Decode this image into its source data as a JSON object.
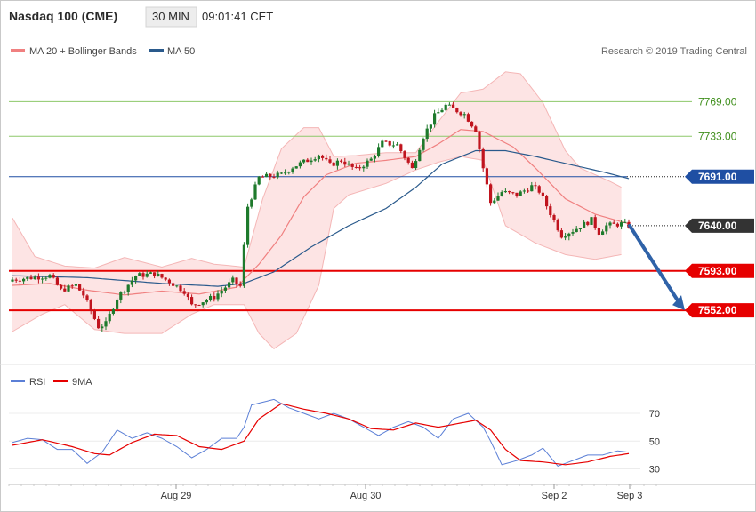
{
  "header": {
    "instrument": "Nasdaq 100 (CME)",
    "timeframe": "30 MIN",
    "time": "09:01:41 CET"
  },
  "legend": {
    "main": [
      {
        "label": "MA 20 + Bollinger Bands",
        "color": "#f08080"
      },
      {
        "label": "MA 50",
        "color": "#2a5a8c"
      }
    ],
    "indicator": [
      {
        "label": "RSI",
        "color": "#5b7fd6"
      },
      {
        "label": "9MA",
        "color": "#e60000"
      }
    ]
  },
  "credit": "Research © 2019 Trading Central",
  "colors": {
    "candle_up": "#1e7a2c",
    "candle_down": "#c0141e",
    "target_line": "#e60000",
    "pivot_line": "#1f4fa3",
    "resistance_line": "#8dc86a",
    "bb_fill": "#fde4e4",
    "bb_line": "#f4b6b6",
    "ma20": "#f08080",
    "ma50": "#2a5a8c",
    "rsi": "#5b7fd6",
    "rsi_ma": "#e60000",
    "arrow": "#2f62a8",
    "last_price_tag": "#333333"
  },
  "chart_data": [
    {
      "type": "candlestick",
      "title": "Nasdaq 100 (CME)",
      "ylim": [
        7505,
        7810
      ],
      "x_labels": [
        "Aug 29",
        "Aug 30",
        "Sep 2",
        "Sep 3"
      ],
      "levels": [
        {
          "value": 7769,
          "label": "7769.00",
          "kind": "resistance"
        },
        {
          "value": 7733,
          "label": "7733.00",
          "kind": "resistance"
        },
        {
          "value": 7691,
          "label": "7691.00",
          "kind": "pivot"
        },
        {
          "value": 7640,
          "label": "7640.00",
          "kind": "last"
        },
        {
          "value": 7593,
          "label": "7593.00",
          "kind": "target"
        },
        {
          "value": 7552,
          "label": "7552.00",
          "kind": "target"
        }
      ],
      "projection": {
        "from": 7640,
        "to": 7552
      },
      "price_path": [
        {
          "i": 0,
          "p": 7584
        },
        {
          "i": 10,
          "p": 7588
        },
        {
          "i": 13,
          "p": 7573
        },
        {
          "i": 17,
          "p": 7578
        },
        {
          "i": 19,
          "p": 7568
        },
        {
          "i": 23,
          "p": 7535
        },
        {
          "i": 25,
          "p": 7538
        },
        {
          "i": 28,
          "p": 7565
        },
        {
          "i": 33,
          "p": 7588
        },
        {
          "i": 38,
          "p": 7590
        },
        {
          "i": 42,
          "p": 7582
        },
        {
          "i": 46,
          "p": 7572
        },
        {
          "i": 48,
          "p": 7557
        },
        {
          "i": 54,
          "p": 7566
        },
        {
          "i": 59,
          "p": 7583
        },
        {
          "i": 61,
          "p": 7577
        },
        {
          "i": 63,
          "p": 7660
        },
        {
          "i": 66,
          "p": 7690
        },
        {
          "i": 72,
          "p": 7693
        },
        {
          "i": 75,
          "p": 7701
        },
        {
          "i": 79,
          "p": 7708
        },
        {
          "i": 82,
          "p": 7714
        },
        {
          "i": 85,
          "p": 7703
        },
        {
          "i": 88,
          "p": 7708
        },
        {
          "i": 92,
          "p": 7698
        },
        {
          "i": 96,
          "p": 7709
        },
        {
          "i": 99,
          "p": 7726
        },
        {
          "i": 103,
          "p": 7724
        },
        {
          "i": 107,
          "p": 7699
        },
        {
          "i": 110,
          "p": 7733
        },
        {
          "i": 113,
          "p": 7754
        },
        {
          "i": 116,
          "p": 7765
        },
        {
          "i": 121,
          "p": 7756
        },
        {
          "i": 124,
          "p": 7740
        },
        {
          "i": 126,
          "p": 7700
        },
        {
          "i": 128,
          "p": 7664
        },
        {
          "i": 131,
          "p": 7675
        },
        {
          "i": 135,
          "p": 7672
        },
        {
          "i": 139,
          "p": 7681
        },
        {
          "i": 141,
          "p": 7676
        },
        {
          "i": 147,
          "p": 7630
        },
        {
          "i": 150,
          "p": 7635
        },
        {
          "i": 155,
          "p": 7646
        },
        {
          "i": 157,
          "p": 7633
        },
        {
          "i": 159,
          "p": 7640
        },
        {
          "i": 163,
          "p": 7642
        },
        {
          "i": 165,
          "p": 7640
        }
      ],
      "ma20": [
        {
          "i": 0,
          "p": 7578
        },
        {
          "i": 10,
          "p": 7580
        },
        {
          "i": 20,
          "p": 7573
        },
        {
          "i": 30,
          "p": 7568
        },
        {
          "i": 40,
          "p": 7572
        },
        {
          "i": 50,
          "p": 7569
        },
        {
          "i": 60,
          "p": 7576
        },
        {
          "i": 66,
          "p": 7600
        },
        {
          "i": 72,
          "p": 7630
        },
        {
          "i": 78,
          "p": 7670
        },
        {
          "i": 84,
          "p": 7693
        },
        {
          "i": 92,
          "p": 7705
        },
        {
          "i": 100,
          "p": 7708
        },
        {
          "i": 108,
          "p": 7712
        },
        {
          "i": 114,
          "p": 7725
        },
        {
          "i": 120,
          "p": 7740
        },
        {
          "i": 126,
          "p": 7738
        },
        {
          "i": 134,
          "p": 7722
        },
        {
          "i": 140,
          "p": 7700
        },
        {
          "i": 148,
          "p": 7668
        },
        {
          "i": 156,
          "p": 7652
        },
        {
          "i": 165,
          "p": 7642
        }
      ],
      "ma50": [
        {
          "i": 0,
          "p": 7588
        },
        {
          "i": 20,
          "p": 7586
        },
        {
          "i": 40,
          "p": 7580
        },
        {
          "i": 55,
          "p": 7577
        },
        {
          "i": 62,
          "p": 7580
        },
        {
          "i": 70,
          "p": 7592
        },
        {
          "i": 80,
          "p": 7618
        },
        {
          "i": 90,
          "p": 7640
        },
        {
          "i": 100,
          "p": 7658
        },
        {
          "i": 108,
          "p": 7680
        },
        {
          "i": 115,
          "p": 7704
        },
        {
          "i": 124,
          "p": 7718
        },
        {
          "i": 132,
          "p": 7718
        },
        {
          "i": 140,
          "p": 7712
        },
        {
          "i": 150,
          "p": 7703
        },
        {
          "i": 158,
          "p": 7696
        },
        {
          "i": 165,
          "p": 7689
        }
      ],
      "bb_upper": [
        {
          "i": 0,
          "p": 7648
        },
        {
          "i": 6,
          "p": 7608
        },
        {
          "i": 14,
          "p": 7598
        },
        {
          "i": 22,
          "p": 7596
        },
        {
          "i": 30,
          "p": 7607
        },
        {
          "i": 40,
          "p": 7597
        },
        {
          "i": 48,
          "p": 7606
        },
        {
          "i": 54,
          "p": 7600
        },
        {
          "i": 62,
          "p": 7597
        },
        {
          "i": 67,
          "p": 7668
        },
        {
          "i": 72,
          "p": 7720
        },
        {
          "i": 78,
          "p": 7742
        },
        {
          "i": 82,
          "p": 7742
        },
        {
          "i": 86,
          "p": 7712
        },
        {
          "i": 92,
          "p": 7713
        },
        {
          "i": 100,
          "p": 7716
        },
        {
          "i": 108,
          "p": 7716
        },
        {
          "i": 114,
          "p": 7748
        },
        {
          "i": 120,
          "p": 7778
        },
        {
          "i": 126,
          "p": 7782
        },
        {
          "i": 132,
          "p": 7800
        },
        {
          "i": 136,
          "p": 7798
        },
        {
          "i": 142,
          "p": 7768
        },
        {
          "i": 148,
          "p": 7718
        },
        {
          "i": 152,
          "p": 7700
        },
        {
          "i": 160,
          "p": 7686
        },
        {
          "i": 163,
          "p": 7680
        }
      ],
      "bb_lower": [
        {
          "i": 0,
          "p": 7530
        },
        {
          "i": 8,
          "p": 7548
        },
        {
          "i": 14,
          "p": 7558
        },
        {
          "i": 22,
          "p": 7532
        },
        {
          "i": 30,
          "p": 7528
        },
        {
          "i": 40,
          "p": 7528
        },
        {
          "i": 48,
          "p": 7548
        },
        {
          "i": 54,
          "p": 7558
        },
        {
          "i": 62,
          "p": 7558
        },
        {
          "i": 66,
          "p": 7528
        },
        {
          "i": 70,
          "p": 7512
        },
        {
          "i": 76,
          "p": 7528
        },
        {
          "i": 82,
          "p": 7578
        },
        {
          "i": 86,
          "p": 7658
        },
        {
          "i": 90,
          "p": 7672
        },
        {
          "i": 100,
          "p": 7684
        },
        {
          "i": 108,
          "p": 7698
        },
        {
          "i": 114,
          "p": 7706
        },
        {
          "i": 120,
          "p": 7712
        },
        {
          "i": 126,
          "p": 7708
        },
        {
          "i": 132,
          "p": 7640
        },
        {
          "i": 140,
          "p": 7622
        },
        {
          "i": 148,
          "p": 7610
        },
        {
          "i": 156,
          "p": 7605
        },
        {
          "i": 163,
          "p": 7610
        }
      ],
      "price_noise_seed": 7
    },
    {
      "type": "line",
      "title": "RSI",
      "ylim": [
        22,
        86
      ],
      "yticks": [
        30,
        50,
        70
      ],
      "rsi": [
        {
          "i": 0,
          "p": 49
        },
        {
          "i": 4,
          "p": 52
        },
        {
          "i": 8,
          "p": 51
        },
        {
          "i": 12,
          "p": 44
        },
        {
          "i": 16,
          "p": 44
        },
        {
          "i": 20,
          "p": 34
        },
        {
          "i": 24,
          "p": 42
        },
        {
          "i": 28,
          "p": 58
        },
        {
          "i": 32,
          "p": 52
        },
        {
          "i": 36,
          "p": 56
        },
        {
          "i": 40,
          "p": 52
        },
        {
          "i": 44,
          "p": 46
        },
        {
          "i": 48,
          "p": 38
        },
        {
          "i": 52,
          "p": 44
        },
        {
          "i": 56,
          "p": 52
        },
        {
          "i": 60,
          "p": 52
        },
        {
          "i": 62,
          "p": 60
        },
        {
          "i": 64,
          "p": 76
        },
        {
          "i": 70,
          "p": 80
        },
        {
          "i": 74,
          "p": 74
        },
        {
          "i": 78,
          "p": 70
        },
        {
          "i": 82,
          "p": 66
        },
        {
          "i": 86,
          "p": 70
        },
        {
          "i": 90,
          "p": 66
        },
        {
          "i": 94,
          "p": 60
        },
        {
          "i": 98,
          "p": 54
        },
        {
          "i": 102,
          "p": 60
        },
        {
          "i": 106,
          "p": 64
        },
        {
          "i": 110,
          "p": 60
        },
        {
          "i": 114,
          "p": 52
        },
        {
          "i": 118,
          "p": 66
        },
        {
          "i": 122,
          "p": 70
        },
        {
          "i": 126,
          "p": 60
        },
        {
          "i": 128,
          "p": 50
        },
        {
          "i": 131,
          "p": 33
        },
        {
          "i": 135,
          "p": 36
        },
        {
          "i": 139,
          "p": 40
        },
        {
          "i": 142,
          "p": 45
        },
        {
          "i": 146,
          "p": 32
        },
        {
          "i": 150,
          "p": 36
        },
        {
          "i": 154,
          "p": 40
        },
        {
          "i": 158,
          "p": 40
        },
        {
          "i": 162,
          "p": 43
        },
        {
          "i": 165,
          "p": 42
        }
      ],
      "rsi_ma": [
        {
          "i": 0,
          "p": 47
        },
        {
          "i": 8,
          "p": 51
        },
        {
          "i": 16,
          "p": 46
        },
        {
          "i": 22,
          "p": 41
        },
        {
          "i": 26,
          "p": 40
        },
        {
          "i": 32,
          "p": 49
        },
        {
          "i": 38,
          "p": 55
        },
        {
          "i": 44,
          "p": 54
        },
        {
          "i": 50,
          "p": 46
        },
        {
          "i": 56,
          "p": 44
        },
        {
          "i": 62,
          "p": 50
        },
        {
          "i": 66,
          "p": 66
        },
        {
          "i": 72,
          "p": 77
        },
        {
          "i": 78,
          "p": 73
        },
        {
          "i": 84,
          "p": 70
        },
        {
          "i": 90,
          "p": 66
        },
        {
          "i": 96,
          "p": 59
        },
        {
          "i": 102,
          "p": 58
        },
        {
          "i": 108,
          "p": 63
        },
        {
          "i": 114,
          "p": 60
        },
        {
          "i": 120,
          "p": 63
        },
        {
          "i": 124,
          "p": 65
        },
        {
          "i": 128,
          "p": 58
        },
        {
          "i": 132,
          "p": 44
        },
        {
          "i": 136,
          "p": 36
        },
        {
          "i": 142,
          "p": 35
        },
        {
          "i": 148,
          "p": 33
        },
        {
          "i": 154,
          "p": 35
        },
        {
          "i": 160,
          "p": 39
        },
        {
          "i": 165,
          "p": 41
        }
      ]
    }
  ]
}
